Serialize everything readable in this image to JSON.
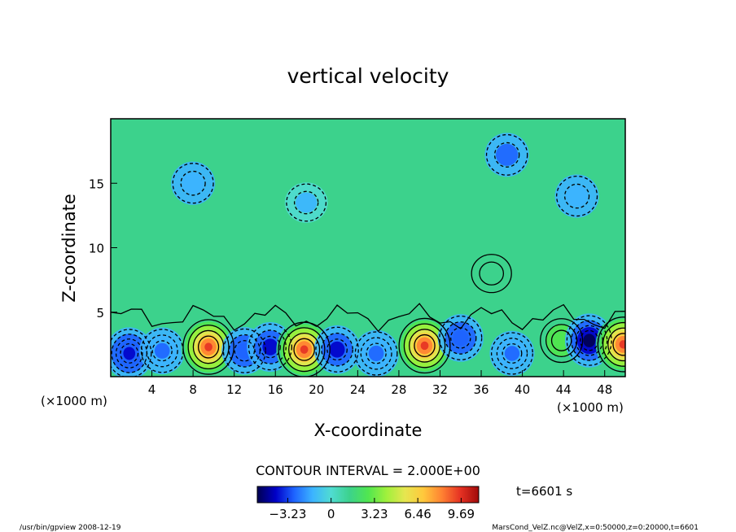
{
  "chart_data": {
    "type": "heatmap",
    "title": "vertical velocity",
    "xlabel": "X-coordinate",
    "ylabel": "Z-coordinate",
    "xunit": "(×1000 m)",
    "yunit": "(×1000 m)",
    "xlim": [
      0,
      50
    ],
    "ylim": [
      0,
      20
    ],
    "xticks": [
      4,
      8,
      12,
      16,
      20,
      24,
      28,
      32,
      36,
      40,
      44,
      48
    ],
    "yticks": [
      5,
      10,
      15
    ],
    "contour_interval_label": "CONTOUR INTERVAL = 2.000E+00",
    "time_label": "t=6601 s",
    "colorbar": {
      "ticks": [
        -3.23,
        0,
        3.23,
        6.46,
        9.69
      ],
      "tick_labels": [
        "−3.23",
        "0",
        "3.23",
        "6.46",
        "9.69"
      ],
      "range": [
        -5.5,
        11
      ],
      "colors": [
        "#000050",
        "#0000c8",
        "#1e64ff",
        "#3cb4ff",
        "#50dcd2",
        "#3cd28c",
        "#50e650",
        "#a0f03c",
        "#e6e650",
        "#ffc83c",
        "#ff8232",
        "#e63223",
        "#a00a0a"
      ]
    },
    "features": [
      {
        "x": 1.8,
        "z": 1.8,
        "value": -4.5
      },
      {
        "x": 5.0,
        "z": 2.0,
        "value": -3.0
      },
      {
        "x": 9.5,
        "z": 2.3,
        "value": 9.5
      },
      {
        "x": 13.0,
        "z": 2.0,
        "value": -3.2
      },
      {
        "x": 15.5,
        "z": 2.3,
        "value": -3.8
      },
      {
        "x": 18.8,
        "z": 2.1,
        "value": 10.0
      },
      {
        "x": 22.0,
        "z": 2.1,
        "value": -3.5
      },
      {
        "x": 25.8,
        "z": 1.8,
        "value": -3.0
      },
      {
        "x": 30.5,
        "z": 2.4,
        "value": 9.8
      },
      {
        "x": 34.0,
        "z": 3.0,
        "value": -3.2
      },
      {
        "x": 39.0,
        "z": 1.8,
        "value": -2.5
      },
      {
        "x": 43.8,
        "z": 2.8,
        "value": 3.2
      },
      {
        "x": 46.5,
        "z": 2.8,
        "value": -5.0
      },
      {
        "x": 49.8,
        "z": 2.5,
        "value": 9.5
      },
      {
        "x": 38.5,
        "z": 17.2,
        "value": -2.2
      },
      {
        "x": 45.3,
        "z": 14.0,
        "value": -2.0
      },
      {
        "x": 8.0,
        "z": 15.0,
        "value": -2.0
      },
      {
        "x": 19.0,
        "z": 13.5,
        "value": -1.2
      },
      {
        "x": 37.0,
        "z": 8.0,
        "value": 1.5
      }
    ]
  },
  "footer": {
    "program": "/usr/bin/gpview   2008-12-19",
    "source": "MarsCond_VelZ.nc@VelZ,x=0:50000,z=0:20000,t=6601"
  }
}
